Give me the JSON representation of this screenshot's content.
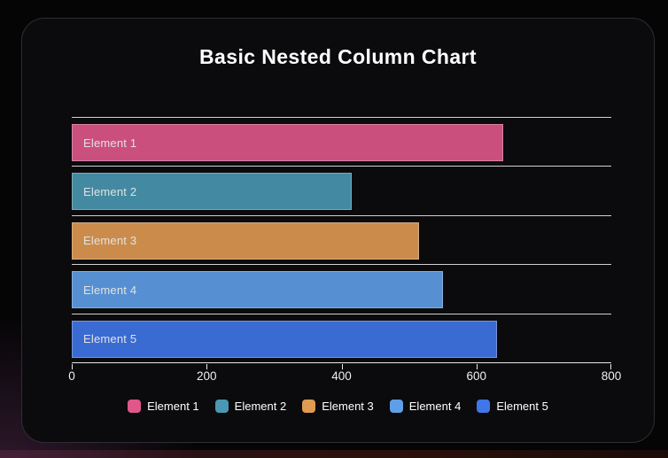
{
  "title": "Basic Nested Column Chart",
  "chart_data": {
    "type": "bar",
    "orientation": "horizontal",
    "title": "Basic Nested Column Chart",
    "categories": [
      "Element 1",
      "Element 2",
      "Element 3",
      "Element 4",
      "Element 5"
    ],
    "values": [
      640,
      415,
      515,
      550,
      630
    ],
    "colors": [
      "#e0578a",
      "#4a97b3",
      "#e09b52",
      "#5f9fe8",
      "#4076e8"
    ],
    "xlabel": "",
    "ylabel": "",
    "xlim": [
      0,
      800
    ],
    "x_ticks": [
      0,
      200,
      400,
      600,
      800
    ],
    "x_tick_labels": [
      "0",
      "200",
      "400",
      "600",
      "800"
    ],
    "grid": true,
    "gridline_color": "#d0d0d0",
    "bar_fill_opacity": 0.9,
    "legend_position": "bottom",
    "legend": [
      {
        "label": "Element 1",
        "color": "#e0578a"
      },
      {
        "label": "Element 2",
        "color": "#4a97b3"
      },
      {
        "label": "Element 3",
        "color": "#e09b52"
      },
      {
        "label": "Element 4",
        "color": "#5f9fe8"
      },
      {
        "label": "Element 5",
        "color": "#4076e8"
      }
    ]
  },
  "theme": {
    "card_background": "#0b0b0d",
    "card_border": "#2d2d34",
    "page_background": "#050506",
    "text_color": "#ffffff",
    "axis_color": "#e8e8e8"
  }
}
